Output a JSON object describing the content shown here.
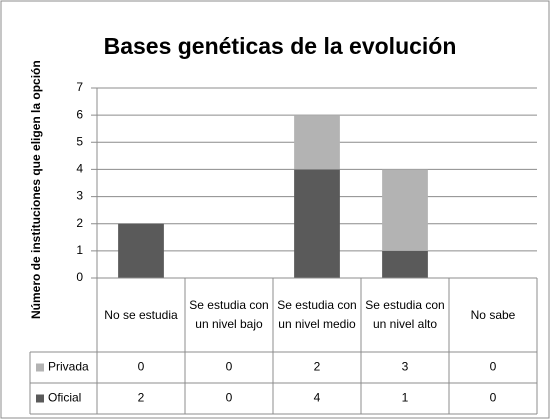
{
  "chart_data": {
    "type": "bar",
    "stacked": true,
    "title": "Bases genéticas de la evolución",
    "y_label": "Número de instituciones que eligen la opción",
    "categories": [
      "No se estudia",
      "Se estudia con un nivel bajo",
      "Se estudia con un nivel medio",
      "Se estudia con un nivel alto",
      "No sabe"
    ],
    "series": [
      {
        "name": "Privada",
        "color": "#b3b3b3",
        "values": [
          0,
          0,
          2,
          3,
          0
        ]
      },
      {
        "name": "Oficial",
        "color": "#5a5a5a",
        "values": [
          2,
          0,
          4,
          1,
          0
        ]
      }
    ],
    "ylim": [
      0,
      7
    ],
    "yticks": [
      0,
      1,
      2,
      3,
      4,
      5,
      6,
      7
    ],
    "grid": true,
    "data_table": true
  }
}
